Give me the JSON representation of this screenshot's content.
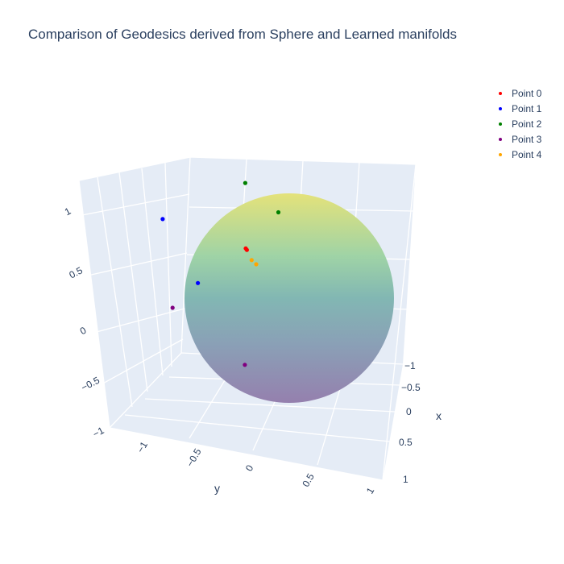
{
  "chart_data": {
    "type": "scatter",
    "title": "Comparison of Geodesics derived from Sphere and Learned manifolds",
    "scene": {
      "x_axis": {
        "title": "x",
        "ticks": [
          "−1",
          "−0.5",
          "0",
          "0.5",
          "1"
        ]
      },
      "y_axis": {
        "title": "y",
        "ticks": [
          "−1",
          "−0.5",
          "0",
          "0.5",
          "1"
        ]
      },
      "z_axis": {
        "title": "",
        "ticks": [
          "−1",
          "−0.5",
          "0",
          "0.5",
          "1"
        ]
      },
      "background": "#e5ecf6",
      "grid": true
    },
    "surface": {
      "shape": "unit sphere",
      "colorscale": [
        "#fde725",
        "#5ec962",
        "#21918c",
        "#3b528b",
        "#440154"
      ],
      "opacity": 0.5
    },
    "series": [
      {
        "name": "Point 0",
        "color": "#ff0000",
        "points": [
          [
            0.55,
            -0.35,
            0.78
          ],
          [
            0.56,
            -0.34,
            0.77
          ]
        ]
      },
      {
        "name": "Point 1",
        "color": "#0000ff",
        "points": [
          [
            0.2,
            -1.1,
            0.85
          ],
          [
            0.55,
            -0.8,
            0.4
          ]
        ]
      },
      {
        "name": "Point 2",
        "color": "#008000",
        "points": [
          [
            -0.2,
            -0.35,
            1.05
          ],
          [
            0.2,
            -0.05,
            0.98
          ]
        ]
      },
      {
        "name": "Point 3",
        "color": "#800080",
        "points": [
          [
            0.3,
            -1.05,
            0.0
          ],
          [
            0.95,
            -0.4,
            -0.2
          ]
        ]
      },
      {
        "name": "Point 4",
        "color": "#ffa500",
        "points": [
          [
            0.62,
            -0.3,
            0.7
          ],
          [
            0.62,
            -0.26,
            0.66
          ]
        ]
      }
    ]
  }
}
